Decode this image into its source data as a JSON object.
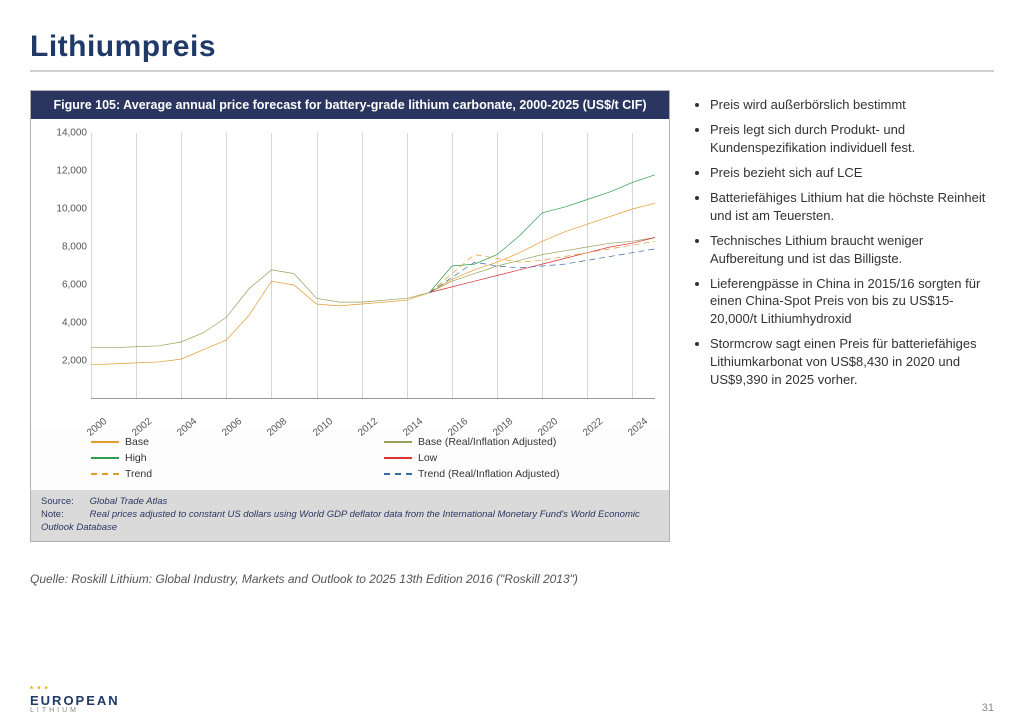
{
  "title": "Lithiumpreis",
  "chart": {
    "type": "line",
    "title": "Figure 105: Average annual price forecast for battery-grade lithium carbonate, 2000-2025 (US$/t CIF)",
    "header_bg": "#2a3660",
    "header_fg": "#ffffff",
    "background_color": "#ffffff",
    "grid_color": "#d6d6d6",
    "axis_color": "#999999",
    "tick_font_size": 10,
    "ylim": [
      0,
      14000
    ],
    "ytick_step": 2000,
    "yticks": [
      "2,000",
      "4,000",
      "6,000",
      "8,000",
      "10,000",
      "12,000",
      "14,000"
    ],
    "xmin": 2000,
    "xmax": 2025,
    "xtick_step": 2,
    "xticks": [
      "2000",
      "2002",
      "2004",
      "2006",
      "2008",
      "2010",
      "2012",
      "2014",
      "2016",
      "2018",
      "2020",
      "2022",
      "2024"
    ],
    "series": [
      {
        "name": "Base",
        "color": "#e39b2d",
        "dash": "solid",
        "width": 2,
        "points": [
          [
            2000,
            1800
          ],
          [
            2001,
            1850
          ],
          [
            2002,
            1900
          ],
          [
            2003,
            1950
          ],
          [
            2004,
            2100
          ],
          [
            2005,
            2600
          ],
          [
            2006,
            3100
          ],
          [
            2007,
            4400
          ],
          [
            2008,
            6200
          ],
          [
            2009,
            6000
          ],
          [
            2010,
            5000
          ],
          [
            2011,
            4900
          ],
          [
            2012,
            5000
          ],
          [
            2013,
            5100
          ],
          [
            2014,
            5200
          ],
          [
            2015,
            5600
          ],
          [
            2016,
            6300
          ],
          [
            2017,
            6800
          ],
          [
            2018,
            7200
          ],
          [
            2019,
            7700
          ],
          [
            2020,
            8300
          ],
          [
            2021,
            8800
          ],
          [
            2022,
            9200
          ],
          [
            2023,
            9600
          ],
          [
            2024,
            10000
          ],
          [
            2025,
            10300
          ]
        ]
      },
      {
        "name": "Base (Real/Inflation Adjusted)",
        "color": "#9aa05a",
        "dash": "solid",
        "width": 2,
        "points": [
          [
            2000,
            2700
          ],
          [
            2001,
            2700
          ],
          [
            2002,
            2750
          ],
          [
            2003,
            2800
          ],
          [
            2004,
            3000
          ],
          [
            2005,
            3500
          ],
          [
            2006,
            4300
          ],
          [
            2007,
            5800
          ],
          [
            2008,
            6800
          ],
          [
            2009,
            6600
          ],
          [
            2010,
            5300
          ],
          [
            2011,
            5100
          ],
          [
            2012,
            5100
          ],
          [
            2013,
            5200
          ],
          [
            2014,
            5300
          ],
          [
            2015,
            5600
          ],
          [
            2016,
            6200
          ],
          [
            2017,
            6600
          ],
          [
            2018,
            7000
          ],
          [
            2019,
            7300
          ],
          [
            2020,
            7600
          ],
          [
            2021,
            7800
          ],
          [
            2022,
            8000
          ],
          [
            2023,
            8200
          ],
          [
            2024,
            8300
          ],
          [
            2025,
            8500
          ]
        ]
      },
      {
        "name": "High",
        "color": "#2e9e4c",
        "dash": "solid",
        "width": 2,
        "points": [
          [
            2015,
            5600
          ],
          [
            2016,
            7000
          ],
          [
            2017,
            7100
          ],
          [
            2018,
            7600
          ],
          [
            2019,
            8600
          ],
          [
            2020,
            9800
          ],
          [
            2021,
            10100
          ],
          [
            2022,
            10500
          ],
          [
            2023,
            10900
          ],
          [
            2024,
            11400
          ],
          [
            2025,
            11800
          ]
        ]
      },
      {
        "name": "Low",
        "color": "#d93333",
        "dash": "solid",
        "width": 2,
        "points": [
          [
            2015,
            5600
          ],
          [
            2016,
            5900
          ],
          [
            2017,
            6200
          ],
          [
            2018,
            6500
          ],
          [
            2019,
            6800
          ],
          [
            2020,
            7100
          ],
          [
            2021,
            7400
          ],
          [
            2022,
            7700
          ],
          [
            2023,
            8000
          ],
          [
            2024,
            8200
          ],
          [
            2025,
            8500
          ]
        ]
      },
      {
        "name": "Trend",
        "color": "#e39b2d",
        "dash": "dashed",
        "width": 2,
        "points": [
          [
            2015,
            5600
          ],
          [
            2016,
            6600
          ],
          [
            2017,
            7600
          ],
          [
            2018,
            7400
          ],
          [
            2019,
            7200
          ],
          [
            2020,
            7300
          ],
          [
            2021,
            7500
          ],
          [
            2022,
            7700
          ],
          [
            2023,
            7900
          ],
          [
            2024,
            8100
          ],
          [
            2025,
            8300
          ]
        ]
      },
      {
        "name": "Trend (Real/Inflation Adjusted)",
        "color": "#3a6aa8",
        "dash": "dashed",
        "width": 2,
        "points": [
          [
            2015,
            5600
          ],
          [
            2016,
            6400
          ],
          [
            2017,
            7200
          ],
          [
            2018,
            7000
          ],
          [
            2019,
            6900
          ],
          [
            2020,
            7000
          ],
          [
            2021,
            7100
          ],
          [
            2022,
            7300
          ],
          [
            2023,
            7500
          ],
          [
            2024,
            7700
          ],
          [
            2025,
            7900
          ]
        ]
      }
    ],
    "legend": [
      {
        "label": "Base",
        "color": "#e39b2d",
        "dash": "solid"
      },
      {
        "label": "Base (Real/Inflation Adjusted)",
        "color": "#9aa05a",
        "dash": "solid"
      },
      {
        "label": "High",
        "color": "#2e9e4c",
        "dash": "solid"
      },
      {
        "label": "Low",
        "color": "#d93333",
        "dash": "solid"
      },
      {
        "label": "Trend",
        "color": "#e39b2d",
        "dash": "dashed"
      },
      {
        "label": "Trend (Real/Inflation Adjusted)",
        "color": "#3a6aa8",
        "dash": "dashed"
      }
    ],
    "footer": {
      "source_label": "Source:",
      "source_text": "Global Trade Atlas",
      "note_label": "Note:",
      "note_text": "Real prices adjusted to constant US dollars using World GDP deflator data from the International Monetary Fund's World Economic Outlook Database"
    }
  },
  "bullets": [
    "Preis wird außerbörslich bestimmt",
    "Preis legt sich durch Produkt- und Kundenspezifikation individuell fest.",
    "Preis bezieht sich auf LCE",
    "Batteriefähiges  Lithium hat die höchste Reinheit und ist am Teuersten.",
    "Technisches Lithium braucht weniger Aufbereitung und ist das Billigste.",
    "Lieferengpässe in China in 2015/16 sorgten für einen China-Spot Preis von bis zu US$15-20,000/t Lithiumhydroxid",
    "Stormcrow sagt einen Preis für batteriefähiges Lithiumkarbonat von US$8,430 in 2020 und US$9,390 in 2025 vorher."
  ],
  "source_line": "Quelle: Roskill Lithium: Global Industry, Markets and Outlook to 2025 13th Edition 2016 (\"Roskill 2013\")",
  "logo": {
    "main": "EUROPEAN",
    "sub": "LITHIUM",
    "stars": "* * *"
  },
  "page_number": "31"
}
